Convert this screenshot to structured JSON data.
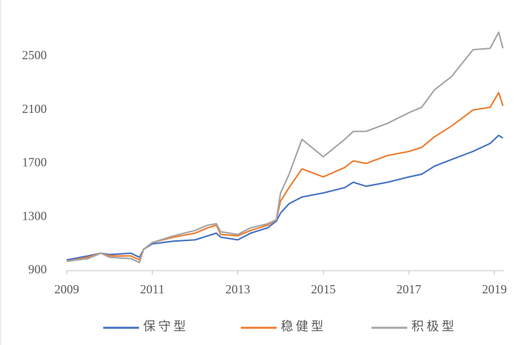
{
  "chart_data": {
    "type": "line",
    "x": [
      2009,
      2009.5,
      2009.8,
      2010,
      2010.5,
      2010.7,
      2010.8,
      2011,
      2011.5,
      2012,
      2012.3,
      2012.5,
      2012.6,
      2013,
      2013.3,
      2013.7,
      2013.9,
      2014,
      2014.2,
      2014.5,
      2015,
      2015.5,
      2015.7,
      2016,
      2016.5,
      2017,
      2017.3,
      2017.6,
      2018,
      2018.5,
      2018.9,
      2019.1,
      2019.2
    ],
    "series": [
      {
        "name": "保守型",
        "color": "#4472c4",
        "values": [
          980,
          1010,
          1030,
          1020,
          1030,
          1000,
          1060,
          1100,
          1120,
          1130,
          1160,
          1180,
          1150,
          1130,
          1180,
          1220,
          1270,
          1330,
          1400,
          1450,
          1480,
          1520,
          1560,
          1530,
          1560,
          1600,
          1620,
          1680,
          1730,
          1790,
          1850,
          1910,
          1890
        ]
      },
      {
        "name": "稳健型",
        "color": "#ed7d31",
        "values": [
          970,
          1000,
          1030,
          1010,
          1010,
          980,
          1060,
          1110,
          1150,
          1180,
          1220,
          1240,
          1170,
          1160,
          1200,
          1240,
          1280,
          1420,
          1520,
          1660,
          1600,
          1670,
          1720,
          1700,
          1760,
          1790,
          1820,
          1900,
          1980,
          2100,
          2120,
          2230,
          2130
        ]
      },
      {
        "name": "积极型",
        "color": "#a5a5a5",
        "values": [
          970,
          990,
          1030,
          1000,
          990,
          960,
          1060,
          1110,
          1160,
          1200,
          1240,
          1250,
          1190,
          1170,
          1220,
          1250,
          1280,
          1480,
          1620,
          1880,
          1750,
          1880,
          1940,
          1940,
          2000,
          2080,
          2120,
          2250,
          2350,
          2550,
          2560,
          2680,
          2560
        ]
      }
    ],
    "xlim": [
      2009,
      2019.2
    ],
    "xticks": [
      2009,
      2011,
      2013,
      2015,
      2017,
      2019
    ],
    "ylim": [
      900,
      2700
    ],
    "yticks": [
      900,
      1300,
      1700,
      2100,
      2500
    ],
    "grid": false,
    "legend": "bottom"
  }
}
